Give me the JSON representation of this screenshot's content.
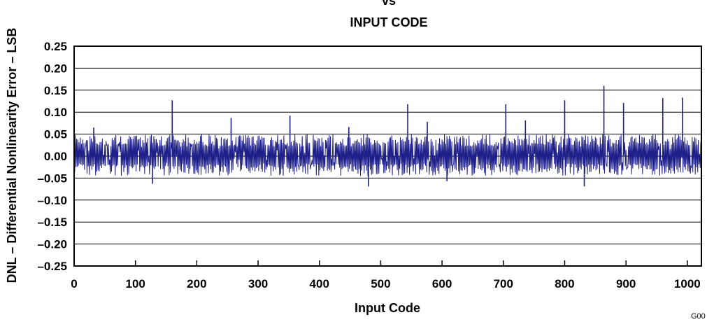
{
  "chart_data": {
    "type": "line",
    "title_lines": [
      "vs",
      "INPUT CODE"
    ],
    "xlabel": "Input Code",
    "ylabel": "DNL – Differential Nonlinearity Error – LSB",
    "xlim": [
      0,
      1023
    ],
    "ylim": [
      -0.25,
      0.25
    ],
    "xticks": [
      0,
      100,
      200,
      300,
      400,
      500,
      600,
      700,
      800,
      900,
      1000
    ],
    "xtick_labels": [
      "0",
      "100",
      "200",
      "300",
      "400",
      "500",
      "600",
      "700",
      "800",
      "900",
      "1000"
    ],
    "yticks": [
      0.25,
      0.2,
      0.15,
      0.1,
      0.05,
      0.0,
      -0.05,
      -0.1,
      -0.15,
      -0.2,
      -0.25
    ],
    "ytick_labels": [
      "0.25",
      "0.20",
      "0.15",
      "0.10",
      "0.05",
      "0.00",
      "–0.05",
      "–0.10",
      "–0.15",
      "–0.20",
      "–0.25"
    ],
    "grid": "horizontal",
    "series_color": "#1f1f8a",
    "typical_band": [
      -0.045,
      0.05
    ],
    "positive_spikes": [
      {
        "x": 32,
        "y": 0.065
      },
      {
        "x": 160,
        "y": 0.127
      },
      {
        "x": 256,
        "y": 0.087
      },
      {
        "x": 352,
        "y": 0.092
      },
      {
        "x": 448,
        "y": 0.066
      },
      {
        "x": 544,
        "y": 0.118
      },
      {
        "x": 576,
        "y": 0.078
      },
      {
        "x": 704,
        "y": 0.118
      },
      {
        "x": 736,
        "y": 0.081
      },
      {
        "x": 800,
        "y": 0.127
      },
      {
        "x": 864,
        "y": 0.16
      },
      {
        "x": 896,
        "y": 0.121
      },
      {
        "x": 960,
        "y": 0.132
      },
      {
        "x": 992,
        "y": 0.133
      }
    ],
    "negative_spikes": [
      {
        "x": 128,
        "y": -0.063
      },
      {
        "x": 480,
        "y": -0.069
      },
      {
        "x": 608,
        "y": -0.057
      },
      {
        "x": 832,
        "y": -0.069
      }
    ]
  },
  "figure_id": "G00"
}
